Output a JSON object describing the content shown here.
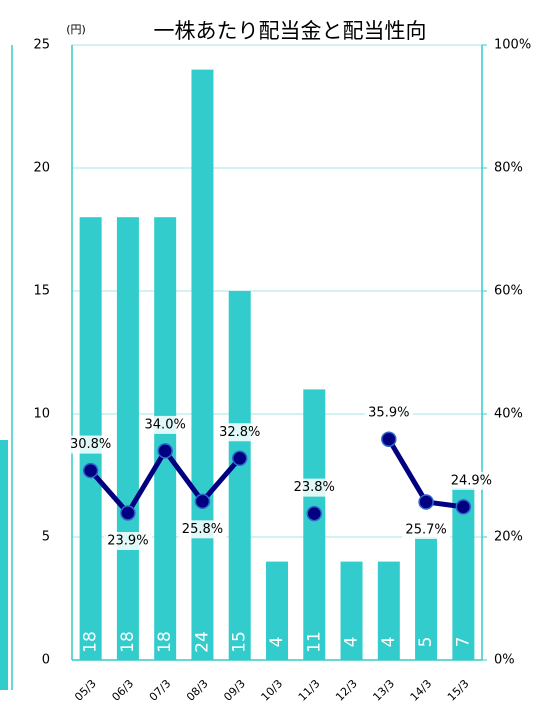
{
  "chart_data": {
    "type": "bar-line",
    "title": "一株あたり配当金と配当性向",
    "y_label": "(円)",
    "categories": [
      "05/3",
      "06/3",
      "07/3",
      "08/3",
      "09/3",
      "10/3",
      "11/3",
      "12/3",
      "13/3",
      "14/3",
      "15/3"
    ],
    "series": [
      {
        "type": "bar",
        "color": "#33cccc",
        "values": [
          18,
          18,
          18,
          24,
          15,
          4,
          11,
          4,
          4,
          5,
          7
        ]
      },
      {
        "type": "line",
        "axis": "y2",
        "color": "#000080",
        "values": [
          30.8,
          23.9,
          34.0,
          25.8,
          32.8,
          null,
          23.8,
          null,
          35.9,
          25.7,
          24.9
        ],
        "value_labels": [
          "30.8%",
          "23.9%",
          "34.0%",
          "25.8%",
          "32.8%",
          null,
          "23.8%",
          null,
          "35.9%",
          "25.7%",
          "24.9%"
        ]
      }
    ],
    "ylim": [
      0,
      25
    ],
    "yticks": [
      0,
      5,
      10,
      15,
      20,
      25
    ],
    "y2lim": [
      0,
      100
    ],
    "y2ticks": [
      {
        "value": 0,
        "label": "0%"
      },
      {
        "value": 20,
        "label": "20%"
      },
      {
        "value": 40,
        "label": "40%"
      },
      {
        "value": 60,
        "label": "60%"
      },
      {
        "value": 80,
        "label": "80%"
      },
      {
        "value": 100,
        "label": "100%"
      }
    ],
    "grid": true
  }
}
